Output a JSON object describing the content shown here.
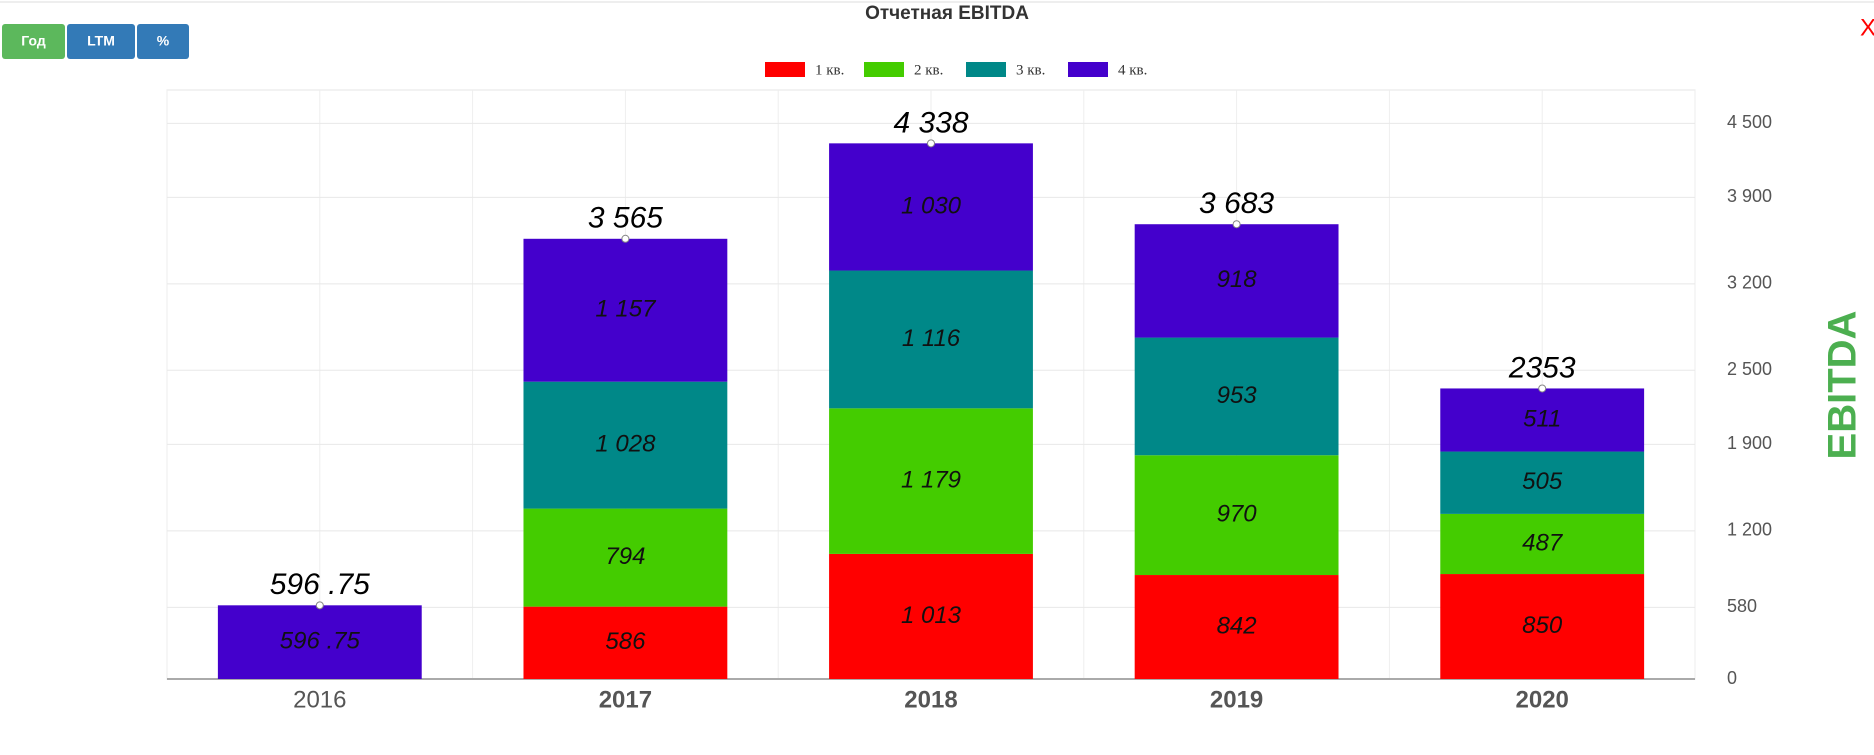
{
  "chart_data": {
    "type": "stacked_bar",
    "title": "Отчетная EBITDA",
    "buttons": [
      "Год",
      "LTM",
      "%"
    ],
    "close": "X",
    "categories": [
      "2016",
      "2017",
      "2018",
      "2019",
      "2020"
    ],
    "series": [
      {
        "name": "1 кв.",
        "color": "#ff0000",
        "values": [
          null,
          586,
          1013,
          842,
          850
        ],
        "value_labels": [
          null,
          "586",
          "1 013",
          "842",
          "850"
        ]
      },
      {
        "name": "2 кв.",
        "color": "#44cc00",
        "values": [
          null,
          794,
          1179,
          970,
          487
        ],
        "value_labels": [
          null,
          "794",
          "1 179",
          "970",
          "487"
        ]
      },
      {
        "name": "3 кв.",
        "color": "#008888",
        "values": [
          null,
          1028,
          1116,
          953,
          505
        ],
        "value_labels": [
          null,
          "1 028",
          "1 116",
          "953",
          "505"
        ]
      },
      {
        "name": "4 кв.",
        "color": "#4400cc",
        "values": [
          596.75,
          1157,
          1030,
          918,
          511
        ],
        "value_labels": [
          "596 .75",
          "1 157",
          "1 030",
          "918",
          "511"
        ]
      }
    ],
    "totals": [
      596.75,
      3565,
      4338,
      3683,
      2353
    ],
    "total_labels": [
      "596 .75",
      "3 565",
      "4 338",
      "3 683",
      "2353"
    ],
    "y_label": "EBITDA",
    "ylim": [
      0,
      4770
    ],
    "yticks": [
      0,
      580,
      {
        "value": 1200,
        "label": "1 200"
      },
      {
        "value": 1900,
        "label": "1 900"
      },
      {
        "value": 2500,
        "label": "2 500"
      },
      {
        "value": 3200,
        "label": "3 200"
      },
      {
        "value": 3900,
        "label": "3 900"
      },
      {
        "value": 4500,
        "label": "4 500"
      }
    ],
    "grid": true
  }
}
